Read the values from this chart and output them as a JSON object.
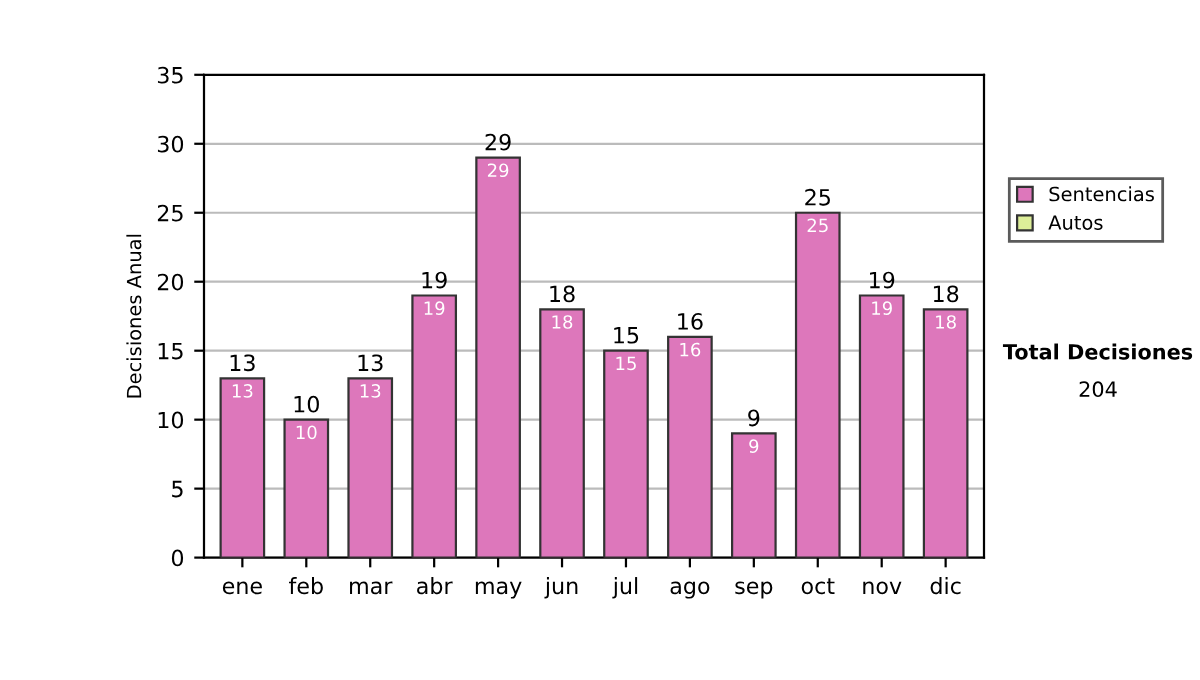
{
  "chart_data": {
    "type": "bar",
    "ylabel": "Decisiones Anual",
    "categories": [
      "ene",
      "feb",
      "mar",
      "abr",
      "may",
      "jun",
      "jul",
      "ago",
      "sep",
      "oct",
      "nov",
      "dic"
    ],
    "series": [
      {
        "name": "Sentencias",
        "color": "#dd77bb",
        "values": [
          13,
          10,
          13,
          19,
          29,
          18,
          15,
          16,
          9,
          25,
          19,
          18
        ],
        "value_labels": [
          "13",
          "10",
          "13",
          "19",
          "29",
          "18",
          "15",
          "16",
          "9",
          "25",
          "19",
          "18"
        ]
      },
      {
        "name": "Autos",
        "color": "#ddee99",
        "values": [
          null,
          null,
          null,
          null,
          null,
          null,
          null,
          null,
          null,
          null,
          null,
          null
        ]
      }
    ],
    "stacked": true,
    "totals": [
      "13",
      "10",
      "13",
      "19",
      "29",
      "18",
      "15",
      "16",
      "9",
      "25",
      "19",
      "18"
    ],
    "ylim": [
      0,
      35
    ],
    "yticks": [
      0,
      5,
      10,
      15,
      20,
      25,
      30,
      35
    ],
    "grid": "y",
    "legend": "right",
    "annotations": [
      "Total Decisiones",
      "204"
    ]
  }
}
